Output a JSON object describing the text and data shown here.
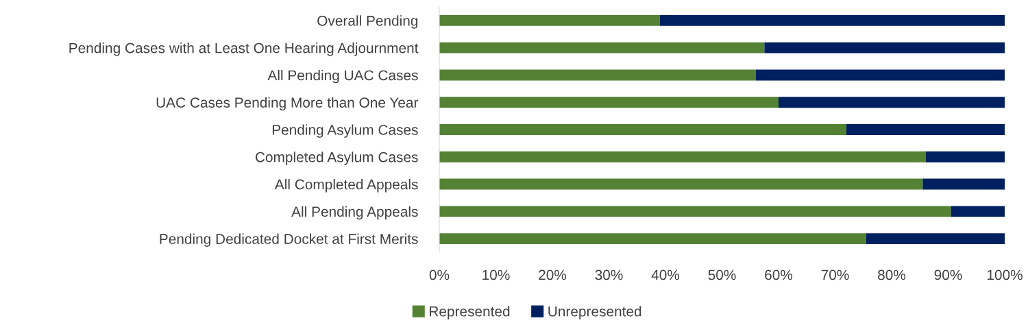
{
  "chart_data": {
    "type": "bar",
    "orientation": "horizontal",
    "stacked": true,
    "categories": [
      "Overall Pending",
      "Pending Cases with at Least One Hearing Adjournment",
      "All Pending UAC Cases",
      "UAC Cases Pending More than One Year",
      "Pending Asylum Cases",
      "Completed Asylum Cases",
      "All Completed Appeals",
      "All Pending Appeals",
      "Pending Dedicated Docket at First Merits"
    ],
    "series": [
      {
        "name": "Represented",
        "color": "#548235",
        "values": [
          39,
          57.5,
          56,
          60,
          72,
          86,
          85.5,
          90.5,
          75.5
        ]
      },
      {
        "name": "Unrepresented",
        "color": "#002060",
        "values": [
          61,
          42.5,
          44,
          40,
          28,
          14,
          14.5,
          9.5,
          24.5
        ]
      }
    ],
    "xlim": [
      0,
      100
    ],
    "xticks": [
      {
        "value": 0,
        "label": "0%"
      },
      {
        "value": 10,
        "label": "10%"
      },
      {
        "value": 20,
        "label": "20%"
      },
      {
        "value": 30,
        "label": "30%"
      },
      {
        "value": 40,
        "label": "40%"
      },
      {
        "value": 50,
        "label": "50%"
      },
      {
        "value": 60,
        "label": "60%"
      },
      {
        "value": 70,
        "label": "70%"
      },
      {
        "value": 80,
        "label": "80%"
      },
      {
        "value": 90,
        "label": "90%"
      },
      {
        "value": 100,
        "label": "100%"
      }
    ],
    "grid": false,
    "legend": "bottom"
  }
}
